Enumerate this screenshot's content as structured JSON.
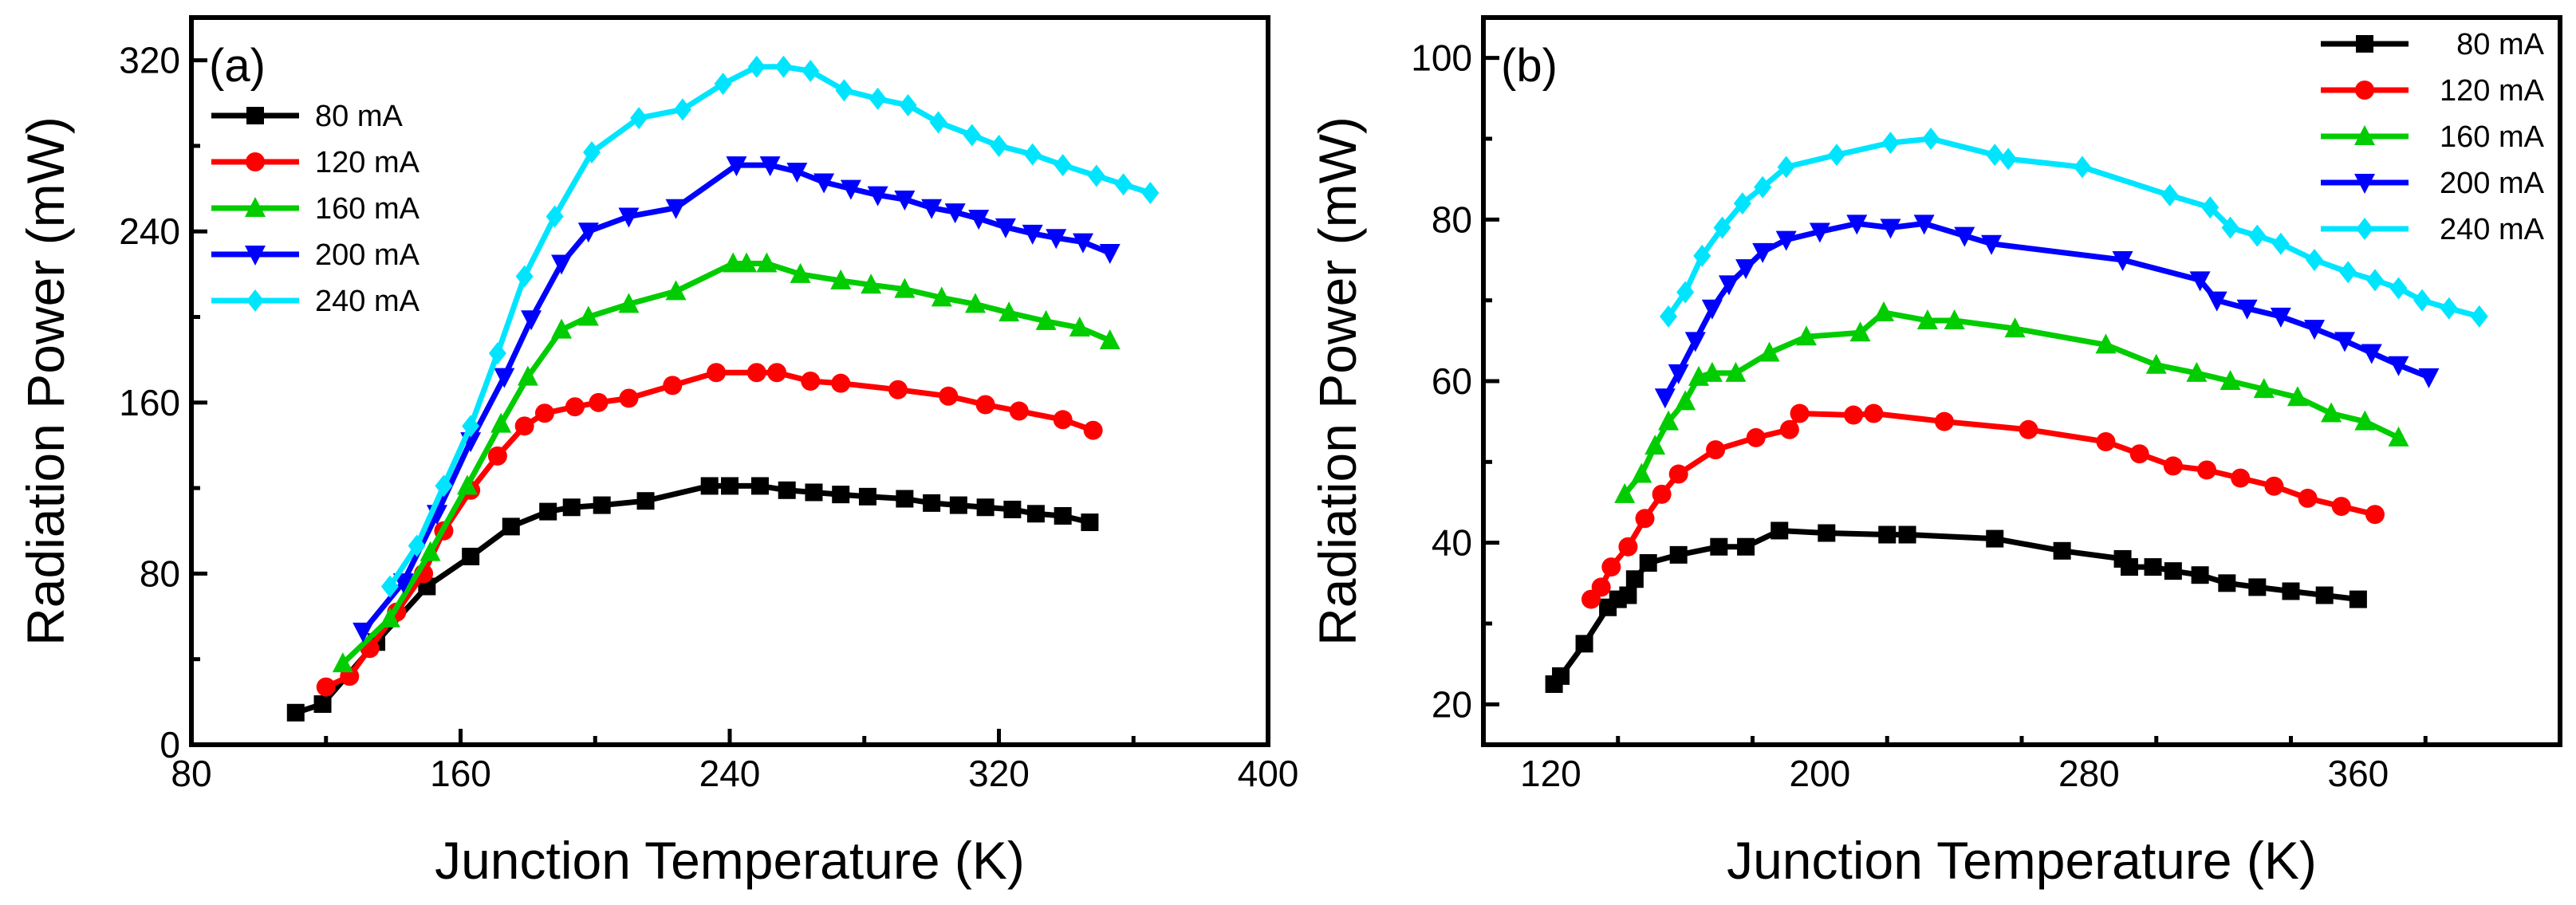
{
  "figure": {
    "panels": [
      {
        "panel_label": "(a)",
        "legend_position": "top-left",
        "chart_data": {
          "type": "line",
          "title": "",
          "xlabel": "Junction Temperature (K)",
          "ylabel": "Radiation Power (mW)",
          "xlim": [
            80,
            400
          ],
          "ylim": [
            0,
            340
          ],
          "xticks": [
            80,
            160,
            240,
            320,
            400
          ],
          "yticks": [
            0,
            80,
            160,
            240,
            320
          ],
          "grid": false,
          "series": [
            {
              "name": "80 mA",
              "color": "#000000",
              "marker": "square",
              "x": [
                111,
                119,
                135,
                150,
                163,
                175,
                186,
                193,
                202,
                215,
                234,
                240,
                249,
                257,
                265,
                273,
                281,
                292,
                300,
                308,
                316,
                324,
                331,
                339,
                347
              ],
              "y": [
                15,
                19,
                48,
                74,
                88,
                102,
                109,
                111,
                112,
                114,
                121,
                121,
                121,
                119,
                118,
                117,
                116,
                115,
                113,
                112,
                111,
                110,
                108,
                107,
                104
              ]
            },
            {
              "name": "120 mA",
              "color": "#ff0000",
              "marker": "circle",
              "x": [
                120,
                127,
                133,
                141,
                149,
                155,
                163,
                171,
                179,
                185,
                194,
                201,
                210,
                223,
                236,
                248,
                254,
                264,
                273,
                290,
                305,
                316,
                326,
                339,
                348
              ],
              "y": [
                27,
                32,
                45,
                62,
                80,
                100,
                119,
                135,
                149,
                155,
                158,
                160,
                162,
                168,
                174,
                174,
                174,
                170,
                169,
                166,
                163,
                159,
                156,
                152,
                147
              ]
            },
            {
              "name": "160 mA",
              "color": "#00cc00",
              "marker": "triangle-up",
              "x": [
                125,
                139,
                151,
                162,
                172,
                180,
                190,
                198,
                210,
                224,
                241,
                245,
                251,
                261,
                273,
                282,
                292,
                303,
                313,
                323,
                334,
                344,
                353
              ],
              "y": [
                38,
                59,
                90,
                121,
                150,
                172,
                194,
                200,
                206,
                212,
                225,
                225,
                225,
                220,
                217,
                215,
                213,
                209,
                206,
                202,
                198,
                195,
                189
              ]
            },
            {
              "name": "200 mA",
              "color": "#0000ff",
              "marker": "triangle-down",
              "x": [
                131,
                143,
                153,
                163,
                173,
                181,
                190,
                198,
                210,
                224,
                242,
                252,
                260,
                268,
                276,
                284,
                292,
                300,
                307,
                314,
                322,
                330,
                337,
                345,
                353
              ],
              "y": [
                53,
                76,
                108,
                142,
                172,
                199,
                225,
                240,
                247,
                251,
                271,
                271,
                268,
                263,
                260,
                257,
                255,
                251,
                249,
                246,
                242,
                239,
                237,
                235,
                230
              ]
            },
            {
              "name": "240 mA",
              "color": "#00e5ff",
              "marker": "diamond",
              "x": [
                139,
                147,
                155,
                163,
                171,
                179,
                188,
                199,
                213,
                226,
                238,
                248,
                256,
                264,
                274,
                284,
                293,
                302,
                312,
                320,
                330,
                339,
                349,
                357,
                365
              ],
              "y": [
                74,
                93,
                121,
                149,
                183,
                219,
                247,
                277,
                293,
                297,
                309,
                317,
                317,
                315,
                306,
                302,
                299,
                291,
                285,
                280,
                276,
                271,
                266,
                262,
                258
              ]
            }
          ]
        }
      },
      {
        "panel_label": "(b)",
        "legend_position": "top-right",
        "chart_data": {
          "type": "line",
          "title": "",
          "xlabel": "Junction Temperature (K)",
          "ylabel": "Radiation Power (mW)",
          "xlim": [
            100,
            420
          ],
          "ylim": [
            15,
            105
          ],
          "xticks": [
            120,
            200,
            280,
            360
          ],
          "yticks": [
            20,
            40,
            60,
            80,
            100
          ],
          "grid": false,
          "series": [
            {
              "name": "80 mA",
              "color": "#000000",
              "marker": "square",
              "x": [
                121,
                123,
                130,
                137,
                140,
                143,
                145,
                149,
                158,
                170,
                178,
                188,
                202,
                220,
                226,
                252,
                272,
                290,
                292,
                299,
                305,
                313,
                321,
                330,
                340,
                350,
                360
              ],
              "y": [
                22.5,
                23.5,
                27.5,
                32,
                33,
                33.5,
                35.5,
                37.5,
                38.5,
                39.5,
                39.5,
                41.5,
                41.2,
                41,
                41,
                40.5,
                39,
                38,
                37,
                37,
                36.5,
                36,
                35,
                34.5,
                34,
                33.5,
                33
              ]
            },
            {
              "name": "120 mA",
              "color": "#ff0000",
              "marker": "circle",
              "x": [
                132,
                135,
                138,
                143,
                148,
                153,
                158,
                169,
                181,
                191,
                194,
                210,
                216,
                237,
                262,
                285,
                295,
                305,
                315,
                325,
                335,
                345,
                355,
                365
              ],
              "y": [
                33,
                34.5,
                37,
                39.5,
                43,
                46,
                48.5,
                51.5,
                53,
                54,
                56,
                55.8,
                56,
                55,
                54,
                52.5,
                51,
                49.5,
                49,
                48,
                47,
                45.5,
                44.5,
                43.5
              ]
            },
            {
              "name": "160 mA",
              "color": "#00cc00",
              "marker": "triangle-up",
              "x": [
                142,
                147,
                151,
                155,
                160,
                164,
                168,
                175,
                185,
                196,
                212,
                219,
                232,
                240,
                258,
                285,
                300,
                312,
                322,
                332,
                342,
                352,
                362,
                372
              ],
              "y": [
                46,
                48.5,
                52,
                55,
                57.5,
                60.5,
                61,
                61,
                63.5,
                65.5,
                66,
                68.5,
                67.5,
                67.5,
                66.5,
                64.5,
                62,
                61,
                60,
                59,
                58,
                56,
                55,
                53
              ]
            },
            {
              "name": "200 mA",
              "color": "#0000ff",
              "marker": "triangle-down",
              "x": [
                154,
                158,
                163,
                168,
                173,
                178,
                183,
                190,
                200,
                211,
                221,
                231,
                243,
                251,
                290,
                313,
                318,
                327,
                337,
                347,
                356,
                364,
                372,
                381
              ],
              "y": [
                58,
                61,
                65,
                69,
                72,
                74,
                76,
                77.5,
                78.5,
                79.5,
                79,
                79.5,
                78,
                77,
                75,
                72.5,
                70,
                69,
                68,
                66.5,
                65,
                63.5,
                62,
                60.5
              ]
            },
            {
              "name": "240 mA",
              "color": "#00e5ff",
              "marker": "diamond",
              "x": [
                155,
                160,
                165,
                171,
                177,
                183,
                190,
                205,
                221,
                233,
                252,
                256,
                278,
                304,
                316,
                322,
                330,
                337,
                347,
                357,
                365,
                372,
                379,
                387,
                396
              ],
              "y": [
                68,
                71,
                75.5,
                79,
                82,
                84,
                86.5,
                88,
                89.5,
                90,
                88,
                87.5,
                86.5,
                83,
                81.5,
                79,
                78,
                77,
                75,
                73.5,
                72.5,
                71.5,
                70,
                69,
                68
              ]
            }
          ]
        }
      }
    ]
  }
}
